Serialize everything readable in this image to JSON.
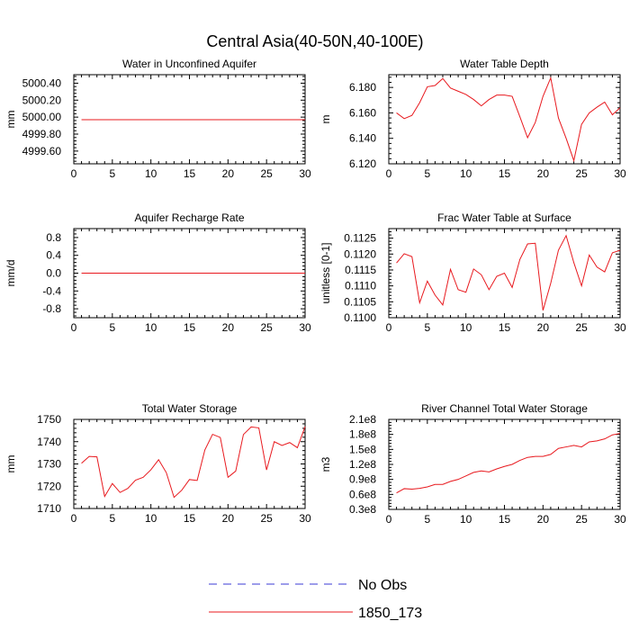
{
  "figure": {
    "title": "Central Asia(40-50N,40-100E)",
    "legend": [
      {
        "label": "No Obs",
        "color": "#3b3bd6",
        "dash": true
      },
      {
        "label": "1850_173",
        "color": "#e8191e",
        "dash": false
      }
    ]
  },
  "chart_data": [
    {
      "type": "line",
      "title": "Water in Unconfined Aquifer",
      "xlabel": "",
      "ylabel": "mm",
      "xlim": [
        0,
        30
      ],
      "ylim": [
        4999.45,
        5000.5
      ],
      "xticks": [
        0,
        5,
        10,
        15,
        20,
        25,
        30
      ],
      "xtick_labels": [
        "0",
        "5",
        "10",
        "15",
        "20",
        "25",
        "30"
      ],
      "yticks": [
        4999.6,
        4999.8,
        5000.0,
        5000.2,
        5000.4
      ],
      "ytick_labels": [
        "4999.60",
        "4999.80",
        "5000.00",
        "5000.20",
        "5000.40"
      ],
      "series": [
        {
          "name": "1850_173",
          "color": "#e8191e",
          "x": [
            1,
            2,
            3,
            4,
            5,
            6,
            7,
            8,
            9,
            10,
            11,
            12,
            13,
            14,
            15,
            16,
            17,
            18,
            19,
            20,
            21,
            22,
            23,
            24,
            25,
            26,
            27,
            28,
            29,
            30
          ],
          "y": [
            4999.97,
            4999.97,
            4999.97,
            4999.97,
            4999.97,
            4999.97,
            4999.97,
            4999.97,
            4999.97,
            4999.97,
            4999.97,
            4999.97,
            4999.97,
            4999.97,
            4999.97,
            4999.97,
            4999.97,
            4999.97,
            4999.97,
            4999.97,
            4999.97,
            4999.97,
            4999.97,
            4999.97,
            4999.97,
            4999.97,
            4999.97,
            4999.97,
            4999.97,
            4999.97
          ]
        }
      ]
    },
    {
      "type": "line",
      "title": "Water Table Depth",
      "xlabel": "",
      "ylabel": "m",
      "xlim": [
        0,
        30
      ],
      "ylim": [
        6.12,
        6.19
      ],
      "xticks": [
        0,
        5,
        10,
        15,
        20,
        25,
        30
      ],
      "xtick_labels": [
        "0",
        "5",
        "10",
        "15",
        "20",
        "25",
        "30"
      ],
      "yticks": [
        6.12,
        6.14,
        6.16,
        6.18
      ],
      "ytick_labels": [
        "6.120",
        "6.140",
        "6.160",
        "6.180"
      ],
      "series": [
        {
          "name": "1850_173",
          "color": "#e8191e",
          "x": [
            1,
            2,
            3,
            4,
            5,
            6,
            7,
            8,
            9,
            10,
            11,
            12,
            13,
            14,
            15,
            16,
            17,
            18,
            19,
            20,
            21,
            22,
            23,
            24,
            25,
            26,
            27,
            28,
            29,
            30
          ],
          "y": [
            6.16,
            6.1555,
            6.158,
            6.168,
            6.1805,
            6.1815,
            6.187,
            6.1795,
            6.177,
            6.1745,
            6.1705,
            6.1655,
            6.1705,
            6.174,
            6.174,
            6.173,
            6.157,
            6.1405,
            6.1525,
            6.173,
            6.1875,
            6.156,
            6.14,
            6.1225,
            6.151,
            6.16,
            6.1645,
            6.1685,
            6.1585,
            6.164
          ]
        }
      ]
    },
    {
      "type": "line",
      "title": "Aquifer Recharge Rate",
      "xlabel": "",
      "ylabel": "mm/d",
      "xlim": [
        0,
        30
      ],
      "ylim": [
        -1.0,
        1.0
      ],
      "xticks": [
        0,
        5,
        10,
        15,
        20,
        25,
        30
      ],
      "xtick_labels": [
        "0",
        "5",
        "10",
        "15",
        "20",
        "25",
        "30"
      ],
      "yticks": [
        -0.8,
        -0.4,
        0.0,
        0.4,
        0.8
      ],
      "ytick_labels": [
        "-0.8",
        "-0.4",
        "0.0",
        "0.4",
        "0.8"
      ],
      "series": [
        {
          "name": "1850_173",
          "color": "#e8191e",
          "x": [
            1,
            2,
            3,
            4,
            5,
            6,
            7,
            8,
            9,
            10,
            11,
            12,
            13,
            14,
            15,
            16,
            17,
            18,
            19,
            20,
            21,
            22,
            23,
            24,
            25,
            26,
            27,
            28,
            29,
            30
          ],
          "y": [
            0,
            0,
            0,
            0,
            0,
            0,
            0,
            0,
            0,
            0,
            0,
            0,
            0,
            0,
            0,
            0,
            0,
            0,
            0,
            0,
            0,
            0,
            0,
            0,
            0,
            0,
            0,
            0,
            0,
            0
          ]
        }
      ]
    },
    {
      "type": "line",
      "title": "Frac Water Table at Surface",
      "xlabel": "",
      "ylabel": "unitless [0-1]",
      "xlim": [
        0,
        30
      ],
      "ylim": [
        0.11,
        0.1128
      ],
      "xticks": [
        0,
        5,
        10,
        15,
        20,
        25,
        30
      ],
      "xtick_labels": [
        "0",
        "5",
        "10",
        "15",
        "20",
        "25",
        "30"
      ],
      "yticks": [
        0.11,
        0.1105,
        0.111,
        0.1115,
        0.112,
        0.1125
      ],
      "ytick_labels": [
        "0.1100",
        "0.1105",
        "0.1110",
        "0.1115",
        "0.1120",
        "0.1125"
      ],
      "series": [
        {
          "name": "1850_173",
          "color": "#e8191e",
          "x": [
            1,
            2,
            3,
            4,
            5,
            6,
            7,
            8,
            9,
            10,
            11,
            12,
            13,
            14,
            15,
            16,
            17,
            18,
            19,
            20,
            21,
            22,
            23,
            24,
            25,
            26,
            27,
            28,
            29,
            30
          ],
          "y": [
            0.11172,
            0.11201,
            0.11192,
            0.11047,
            0.11115,
            0.11071,
            0.1104,
            0.11152,
            0.11088,
            0.1108,
            0.11153,
            0.11135,
            0.11088,
            0.1113,
            0.1114,
            0.11095,
            0.11183,
            0.11232,
            0.11234,
            0.11023,
            0.11108,
            0.11212,
            0.11258,
            0.11173,
            0.111,
            0.11197,
            0.11159,
            0.11144,
            0.11204,
            0.11212
          ]
        }
      ]
    },
    {
      "type": "line",
      "title": "Total Water Storage",
      "xlabel": "",
      "ylabel": "mm",
      "xlim": [
        0,
        30
      ],
      "ylim": [
        1710,
        1750
      ],
      "xticks": [
        0,
        5,
        10,
        15,
        20,
        25,
        30
      ],
      "xtick_labels": [
        "0",
        "5",
        "10",
        "15",
        "20",
        "25",
        "30"
      ],
      "yticks": [
        1710,
        1720,
        1730,
        1740,
        1750
      ],
      "ytick_labels": [
        "1710",
        "1720",
        "1730",
        "1740",
        "1750"
      ],
      "series": [
        {
          "name": "1850_173",
          "color": "#e8191e",
          "x": [
            1,
            2,
            3,
            4,
            5,
            6,
            7,
            8,
            9,
            10,
            11,
            12,
            13,
            14,
            15,
            16,
            17,
            18,
            19,
            20,
            21,
            22,
            23,
            24,
            25,
            26,
            27,
            28,
            29,
            30
          ],
          "y": [
            1730.3,
            1733.4,
            1733.2,
            1715.4,
            1721.2,
            1717.2,
            1719.0,
            1722.7,
            1724.0,
            1727.4,
            1731.9,
            1726.1,
            1715.0,
            1718.2,
            1723.0,
            1722.6,
            1736.3,
            1743.3,
            1741.9,
            1724.0,
            1726.8,
            1743.2,
            1746.6,
            1746.2,
            1727.3,
            1740.0,
            1738.3,
            1739.6,
            1737.3,
            1746.8
          ]
        }
      ]
    },
    {
      "type": "line",
      "title": "River Channel Total Water Storage",
      "xlabel": "",
      "ylabel": "m3",
      "xlim": [
        0,
        30
      ],
      "ylim": [
        30000000,
        210000000
      ],
      "xticks": [
        0,
        5,
        10,
        15,
        20,
        25,
        30
      ],
      "xtick_labels": [
        "0",
        "5",
        "10",
        "15",
        "20",
        "25",
        "30"
      ],
      "yticks": [
        30000000,
        60000000,
        90000000,
        120000000,
        150000000,
        180000000,
        210000000
      ],
      "ytick_labels": [
        "0.3e8",
        "0.6e8",
        "0.9e8",
        "1.2e8",
        "1.5e8",
        "1.8e8",
        "2.1e8"
      ],
      "series": [
        {
          "name": "1850_173",
          "color": "#e8191e",
          "x": [
            1,
            2,
            3,
            4,
            5,
            6,
            7,
            8,
            9,
            10,
            11,
            12,
            13,
            14,
            15,
            16,
            17,
            18,
            19,
            20,
            21,
            22,
            23,
            24,
            25,
            26,
            27,
            28,
            29,
            30
          ],
          "y": [
            63000000,
            71500000,
            70500000,
            72000000,
            75000000,
            80000000,
            80000000,
            86000000,
            90000000,
            97000000,
            104000000,
            107000000,
            105000000,
            111000000,
            116000000,
            120000000,
            128000000,
            134000000,
            136000000,
            136000000,
            140000000,
            152000000,
            155000000,
            158000000,
            155000000,
            165000000,
            167000000,
            171000000,
            179000000,
            182000000
          ]
        }
      ]
    }
  ]
}
